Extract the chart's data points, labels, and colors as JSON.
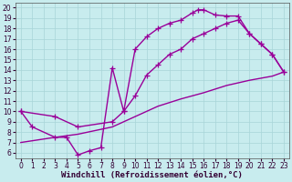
{
  "bg_color": "#c8ecee",
  "grid_color": "#a8d4d8",
  "line_color": "#990099",
  "xlabel": "Windchill (Refroidissement éolien,°C)",
  "xlim": [
    -0.5,
    23.5
  ],
  "ylim": [
    5.5,
    20.5
  ],
  "xticks": [
    0,
    1,
    2,
    3,
    4,
    5,
    6,
    7,
    8,
    9,
    10,
    11,
    12,
    13,
    14,
    15,
    16,
    17,
    18,
    19,
    20,
    21,
    22,
    23
  ],
  "yticks": [
    6,
    7,
    8,
    9,
    10,
    11,
    12,
    13,
    14,
    15,
    16,
    17,
    18,
    19,
    20
  ],
  "c1x": [
    0,
    1,
    3,
    4,
    5,
    6,
    7,
    8,
    9,
    10,
    11,
    12,
    13,
    14,
    15,
    15.5,
    16,
    17,
    18,
    19,
    20,
    21,
    22,
    23
  ],
  "c1y": [
    10,
    8.5,
    7.5,
    7.5,
    5.8,
    6.2,
    6.5,
    14.2,
    10.0,
    16.0,
    17.2,
    18.0,
    18.5,
    18.8,
    19.5,
    19.8,
    19.8,
    19.3,
    19.2,
    19.2,
    17.5,
    16.5,
    15.5,
    13.8
  ],
  "c2x": [
    0,
    3,
    5,
    8,
    9,
    10,
    11,
    12,
    13,
    14,
    15,
    16,
    17,
    18,
    19,
    20,
    21,
    22,
    23
  ],
  "c2y": [
    10,
    9.5,
    8.5,
    9.0,
    10.0,
    11.5,
    13.5,
    14.5,
    15.5,
    16.0,
    17.0,
    17.5,
    18.0,
    18.5,
    18.8,
    17.5,
    16.5,
    15.5,
    13.8
  ],
  "c3x": [
    0,
    3,
    5,
    8,
    10,
    12,
    14,
    16,
    18,
    20,
    21,
    22,
    23
  ],
  "c3y": [
    7.0,
    7.5,
    7.8,
    8.5,
    9.5,
    10.5,
    11.2,
    11.8,
    12.5,
    13.0,
    13.2,
    13.4,
    13.8
  ],
  "lw": 1.0,
  "ms": 4,
  "tick_fs": 5.5,
  "label_fs": 6.5
}
